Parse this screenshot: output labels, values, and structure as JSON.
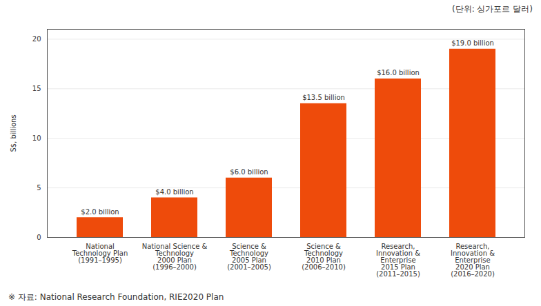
{
  "chart_data": {
    "type": "bar",
    "categories": [
      "National\nTechnology Plan\n(1991–1995)",
      "National Science &\nTechnology\n2000 Plan\n(1996–2000)",
      "Science &\nTechnology\n2005 Plan\n(2001–2005)",
      "Science &\nTechnology\n2010 Plan\n(2006–2010)",
      "Research,\nInnovation &\nEnterprise\n2015 Plan\n(2011–2015)",
      "Research,\nInnovation &\nEnterprise\n2020 Plan\n(2016–2020)"
    ],
    "values": [
      2.0,
      4.0,
      6.0,
      13.5,
      16.0,
      19.0
    ],
    "value_labels": [
      "$2.0 billion",
      "$4.0 billion",
      "$6.0 billion",
      "$13.5 billion",
      "$16.0 billion",
      "$19.0 billion"
    ],
    "data_labels": true,
    "color": "#EE4B0B",
    "ylabel": "S$, billions",
    "ylim": [
      0,
      21
    ],
    "yticks": [
      0,
      5,
      10,
      15,
      20
    ],
    "grid": true,
    "annotations": [
      "(단위: 싱가포르 달러)",
      "※ 자료: National Research Foundation, RIE2020 Plan"
    ]
  }
}
